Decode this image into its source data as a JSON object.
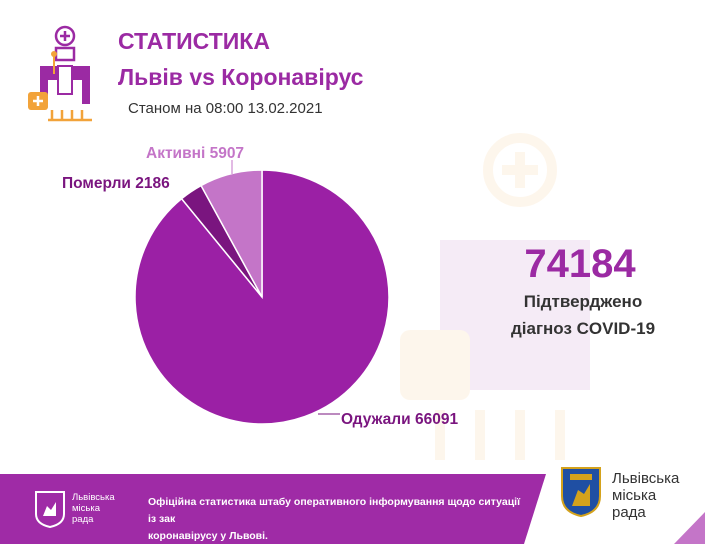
{
  "header": {
    "title_line1": "СТАТИСТИКА",
    "title_line2": "Львів vs Коронавірус",
    "as_of": "Станом на 08:00 13.02.2021"
  },
  "chart_data": {
    "type": "pie",
    "slices": [
      {
        "label": "Одужали 66091",
        "value": 66091,
        "color": "#9b20a5"
      },
      {
        "label": "Померли 2186",
        "value": 2186,
        "color": "#7a157f"
      },
      {
        "label": "Активні 5907",
        "value": 5907,
        "color": "#c475c8"
      }
    ],
    "label_colors": {
      "Одужали": "#7a157f",
      "Померли": "#7a157f",
      "Активні": "#c475c8"
    }
  },
  "summary": {
    "total": "74184",
    "line1": "Підтверджено",
    "line2": "діагноз COVID-19"
  },
  "footer": {
    "council_line1": "Львівська",
    "council_line2": "міська",
    "council_line3": "рада",
    "text": "Офіційна статистика штабу оперативного інформування щодо ситуації із зак... коронавірусу у Львові.",
    "text_line1": "Офіційна статистика штабу оперативного інформування щодо ситуації із зак",
    "text_line2": "коронавірусу у Львові.",
    "right_line1": "Львівська",
    "right_line2": "міська",
    "right_line3": "рада"
  },
  "colors": {
    "brand": "#9b2aa3",
    "footer": "#9f2ba6"
  }
}
